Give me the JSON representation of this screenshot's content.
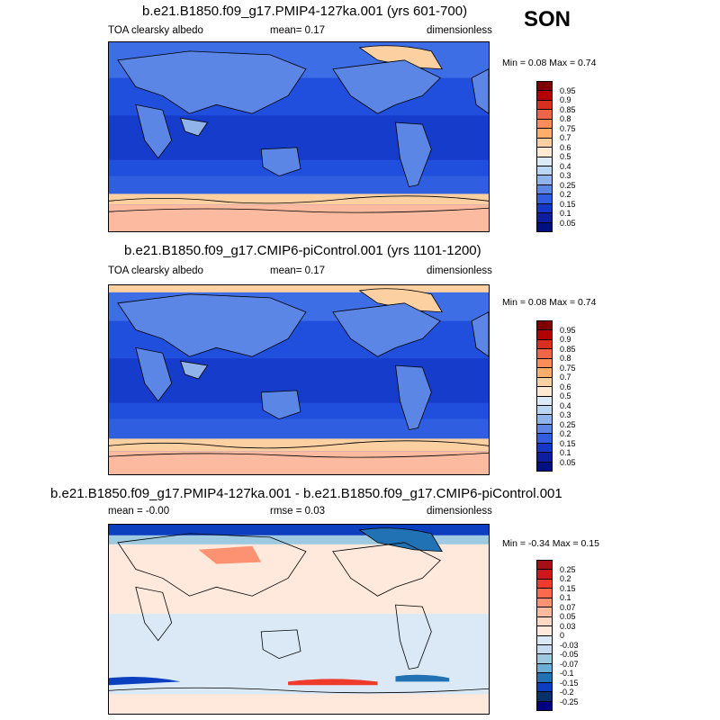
{
  "season": "SON",
  "panels": [
    {
      "title": "b.e21.B1850.f09_g17.PMIP4-127ka.001 (yrs 601-700)",
      "left_label": "TOA clearsky albedo",
      "center_label": "mean=   0.17",
      "right_label": "dimensionless",
      "minmax": "Min =   0.08 Max =   0.74",
      "colorbar_labels": [
        "0.95",
        "0.9",
        "0.85",
        "0.8",
        "0.75",
        "0.7",
        "0.6",
        "0.5",
        "0.4",
        "0.3",
        "0.25",
        "0.2",
        "0.15",
        "0.1",
        "0.05"
      ],
      "colorbar_colors": [
        "#7f0000",
        "#b30000",
        "#d7301f",
        "#ef6548",
        "#fc8d59",
        "#fdae6b",
        "#fdd0a2",
        "#feead2",
        "#dceaf7",
        "#b9d6f2",
        "#8fb3ea",
        "#5b86e5",
        "#2f5fe0",
        "#1437c8",
        "#0d1e9e",
        "#001080"
      ]
    },
    {
      "title": "b.e21.B1850.f09_g17.CMIP6-piControl.001 (yrs 1101-1200)",
      "left_label": "TOA clearsky albedo",
      "center_label": "mean=   0.17",
      "right_label": "dimensionless",
      "minmax": "Min =   0.08 Max =   0.74",
      "colorbar_labels": [
        "0.95",
        "0.9",
        "0.85",
        "0.8",
        "0.75",
        "0.7",
        "0.6",
        "0.5",
        "0.4",
        "0.3",
        "0.25",
        "0.2",
        "0.15",
        "0.1",
        "0.05"
      ],
      "colorbar_colors": [
        "#7f0000",
        "#b30000",
        "#d7301f",
        "#ef6548",
        "#fc8d59",
        "#fdae6b",
        "#fdd0a2",
        "#feead2",
        "#dceaf7",
        "#b9d6f2",
        "#8fb3ea",
        "#5b86e5",
        "#2f5fe0",
        "#1437c8",
        "#0d1e9e",
        "#001080"
      ]
    },
    {
      "title": "b.e21.B1850.f09_g17.PMIP4-127ka.001 - b.e21.B1850.f09_g17.CMIP6-piControl.001",
      "left_label": "mean =  -0.00",
      "center_label": "rmse =  0.03",
      "right_label": "dimensionless",
      "minmax": "Min =  -0.34 Max =   0.15",
      "colorbar_labels": [
        "0.25",
        "0.2",
        "0.15",
        "0.1",
        "0.07",
        "0.05",
        "0.03",
        "0",
        "-0.03",
        "-0.05",
        "-0.07",
        "-0.1",
        "-0.15",
        "-0.2",
        "-0.25"
      ],
      "colorbar_colors": [
        "#a50f15",
        "#cb181d",
        "#ef3b2c",
        "#fb6a4a",
        "#fc9272",
        "#fcbba1",
        "#fdd9c4",
        "#fee9dc",
        "#dbe9f6",
        "#c6dbef",
        "#9ecae1",
        "#6baed6",
        "#2171b5",
        "#0b3fc0",
        "#08306b",
        "#000080"
      ]
    }
  ]
}
